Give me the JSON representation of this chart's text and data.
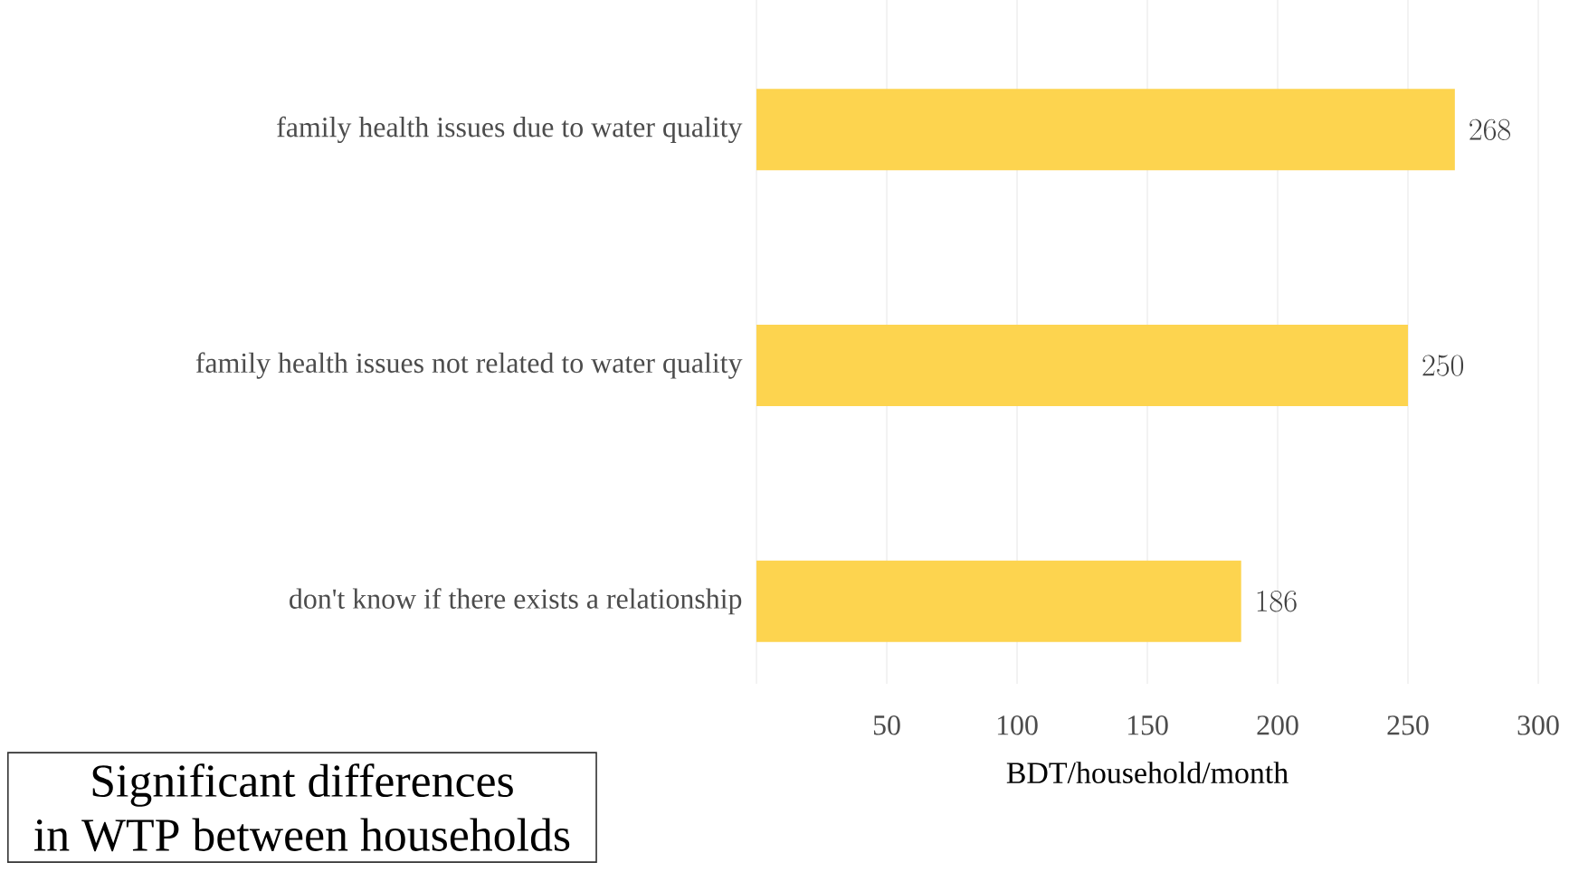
{
  "chart_data": {
    "type": "bar",
    "orientation": "horizontal",
    "categories": [
      "family health issues due to water quality",
      "family health issues not related to water quality",
      "don't know if there exists a relationship"
    ],
    "values": [
      268,
      250,
      186
    ],
    "color": "#fdd44f",
    "xlim": [
      0,
      300
    ],
    "xticks": [
      {
        "value": 0,
        "label": null
      },
      50,
      100,
      150,
      200,
      250,
      300
    ],
    "xlabel": "BDT/household/month",
    "grid": "x",
    "data_labels": true,
    "annotations": [
      "Significant differences",
      "in WTP between households"
    ]
  }
}
